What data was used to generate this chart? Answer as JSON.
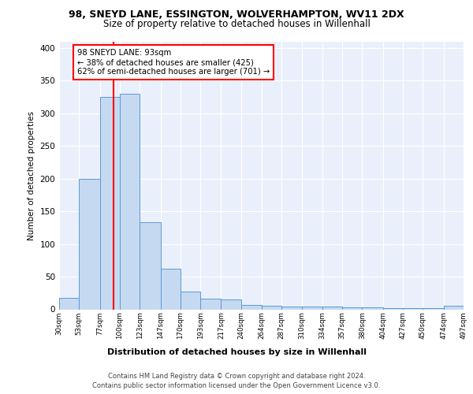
{
  "title1": "98, SNEYD LANE, ESSINGTON, WOLVERHAMPTON, WV11 2DX",
  "title2": "Size of property relative to detached houses in Willenhall",
  "xlabel": "Distribution of detached houses by size in Willenhall",
  "ylabel": "Number of detached properties",
  "bar_values": [
    18,
    200,
    325,
    330,
    133,
    62,
    27,
    16,
    15,
    7,
    5,
    4,
    4,
    4,
    3,
    3,
    2,
    2,
    2,
    5
  ],
  "bin_labels": [
    "30sqm",
    "53sqm",
    "77sqm",
    "100sqm",
    "123sqm",
    "147sqm",
    "170sqm",
    "193sqm",
    "217sqm",
    "240sqm",
    "264sqm",
    "287sqm",
    "310sqm",
    "334sqm",
    "357sqm",
    "380sqm",
    "404sqm",
    "427sqm",
    "450sqm",
    "474sqm",
    "497sqm"
  ],
  "bar_color": "#c5d9f1",
  "bar_edge_color": "#5b9bd5",
  "red_line_x": 93,
  "bin_edges": [
    30,
    53,
    77,
    100,
    123,
    147,
    170,
    193,
    217,
    240,
    264,
    287,
    310,
    334,
    357,
    380,
    404,
    427,
    450,
    474,
    497
  ],
  "annotation_text": "98 SNEYD LANE: 93sqm\n← 38% of detached houses are smaller (425)\n62% of semi-detached houses are larger (701) →",
  "background_color": "#eaf0fb",
  "grid_color": "#ffffff",
  "footer1": "Contains HM Land Registry data © Crown copyright and database right 2024.",
  "footer2": "Contains public sector information licensed under the Open Government Licence v3.0.",
  "ylim": [
    0,
    410
  ],
  "yticks": [
    0,
    50,
    100,
    150,
    200,
    250,
    300,
    350,
    400
  ]
}
